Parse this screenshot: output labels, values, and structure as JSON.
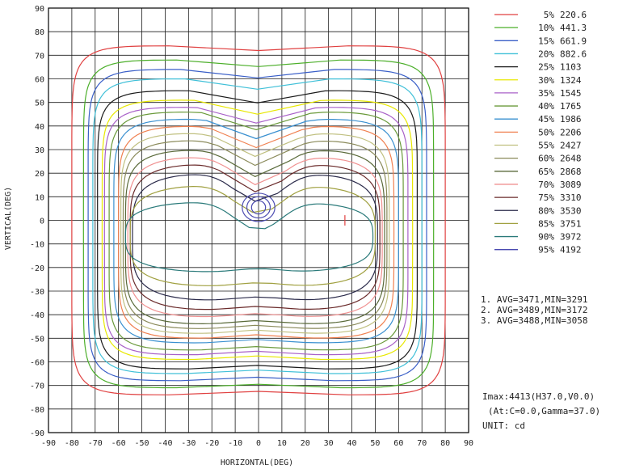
{
  "chart_data": {
    "type": "line",
    "subtype": "isocandela-contour",
    "xlabel": "HORIZONTAL(DEG)",
    "ylabel": "VERTICAL(DEG)",
    "xlim": [
      -90,
      90
    ],
    "ylim": [
      -90,
      90
    ],
    "x_ticks": [
      "-90",
      "-80",
      "-70",
      "-60",
      "-50",
      "-40",
      "-30",
      "-20",
      "-10",
      "0",
      "10",
      "20",
      "30",
      "40",
      "50",
      "60",
      "70",
      "80",
      "90"
    ],
    "y_ticks": [
      "90",
      "80",
      "70",
      "60",
      "50",
      "40",
      "30",
      "20",
      "10",
      "0",
      "-10",
      "-20",
      "-30",
      "-40",
      "-50",
      "-60",
      "-70",
      "-80",
      "-90"
    ],
    "grid": true,
    "legend_position": "right",
    "series": [
      {
        "name": "5% 220.6",
        "level_pct": 5,
        "value": 220.6,
        "color": "#e04040",
        "extent": {
          "top": 74,
          "bottom": -74,
          "left": -80,
          "right": 80
        }
      },
      {
        "name": "10% 441.3",
        "level_pct": 10,
        "value": 441.3,
        "color": "#4caf2a",
        "extent": {
          "top": 68,
          "bottom": -71,
          "left": -75,
          "right": 75
        }
      },
      {
        "name": "15% 661.9",
        "level_pct": 15,
        "value": 661.9,
        "color": "#3a5fc8",
        "extent": {
          "top": 64,
          "bottom": -68,
          "left": -73,
          "right": 72
        }
      },
      {
        "name": "20% 882.6",
        "level_pct": 20,
        "value": 882.6,
        "color": "#40c0d8",
        "extent": {
          "top": 60,
          "bottom": -65,
          "left": -71,
          "right": 70
        }
      },
      {
        "name": "25% 1103",
        "level_pct": 25,
        "value": 1103,
        "color": "#1a1a1a",
        "extent": {
          "top": 55,
          "bottom": -63,
          "left": -69,
          "right": 68
        }
      },
      {
        "name": "30% 1324",
        "level_pct": 30,
        "value": 1324,
        "color": "#e8e800",
        "extent": {
          "top": 51,
          "bottom": -59,
          "left": -67,
          "right": 66
        }
      },
      {
        "name": "35% 1545",
        "level_pct": 35,
        "value": 1545,
        "color": "#a860c8",
        "extent": {
          "top": 48,
          "bottom": -57,
          "left": -66,
          "right": 64
        }
      },
      {
        "name": "40% 1765",
        "level_pct": 40,
        "value": 1765,
        "color": "#6a9a3a",
        "extent": {
          "top": 46,
          "bottom": -55,
          "left": -64,
          "right": 62
        }
      },
      {
        "name": "45% 1986",
        "level_pct": 45,
        "value": 1986,
        "color": "#3a90d0",
        "extent": {
          "top": 43,
          "bottom": -52,
          "left": -62,
          "right": 60
        }
      },
      {
        "name": "50% 2206",
        "level_pct": 50,
        "value": 2206,
        "color": "#f08050",
        "extent": {
          "top": 40,
          "bottom": -50,
          "left": -60,
          "right": 58
        }
      },
      {
        "name": "55% 2427",
        "level_pct": 55,
        "value": 2427,
        "color": "#c0c080",
        "extent": {
          "top": 37,
          "bottom": -48,
          "left": -59,
          "right": 56
        }
      },
      {
        "name": "60% 2648",
        "level_pct": 60,
        "value": 2648,
        "color": "#8a8a5a",
        "extent": {
          "top": 34,
          "bottom": -46,
          "left": -58,
          "right": 55
        }
      },
      {
        "name": "65% 2868",
        "level_pct": 65,
        "value": 2868,
        "color": "#5a6a3a",
        "extent": {
          "top": 30,
          "bottom": -44,
          "left": -57,
          "right": 54
        }
      },
      {
        "name": "70% 3089",
        "level_pct": 70,
        "value": 3089,
        "color": "#f09090",
        "extent": {
          "top": 27,
          "bottom": -41,
          "left": -56,
          "right": 53
        }
      },
      {
        "name": "75% 3310",
        "level_pct": 75,
        "value": 3310,
        "color": "#6a2a2a",
        "extent": {
          "top": 24,
          "bottom": -38,
          "left": -55,
          "right": 52
        }
      },
      {
        "name": "80% 3530",
        "level_pct": 80,
        "value": 3530,
        "color": "#2a2a4a",
        "extent": {
          "top": 20,
          "bottom": -34,
          "left": -54,
          "right": 51
        }
      },
      {
        "name": "85% 3751",
        "level_pct": 85,
        "value": 3751,
        "color": "#a0a040",
        "extent": {
          "top": 15,
          "bottom": -28,
          "left": -55,
          "right": 50
        }
      },
      {
        "name": "90% 3972",
        "level_pct": 90,
        "value": 3972,
        "color": "#2a7a7a",
        "extent": {
          "top": 8,
          "bottom": -22,
          "left": -57,
          "right": 49
        }
      },
      {
        "name": "95% 4192",
        "level_pct": 95,
        "value": 4192,
        "color": "#4a4ab0",
        "extent": {
          "top": 12,
          "bottom": -1,
          "left": -8,
          "right": 8
        }
      }
    ],
    "peak_marker": {
      "x": 37,
      "y": 0,
      "color": "#e04040"
    },
    "stats": [
      "1. AVG=3471,MIN=3291",
      "2. AVG=3489,MIN=3172",
      "3. AVG=3488,MIN=3058"
    ],
    "info": [
      "Imax:4413(H37.0,V0.0)",
      "(At:C=0.0,Gamma=37.0)",
      "UNIT: cd"
    ]
  }
}
